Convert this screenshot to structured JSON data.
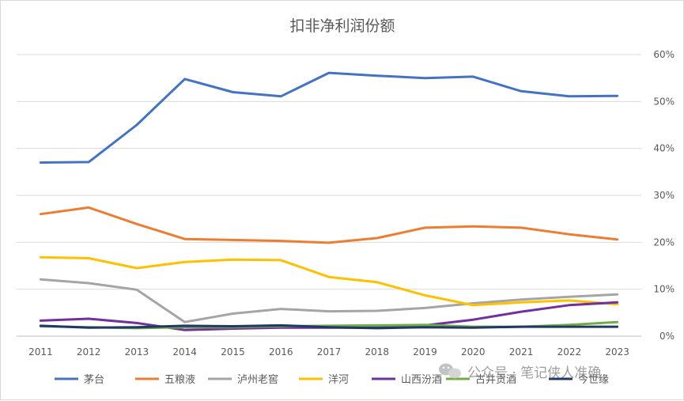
{
  "chart_data": {
    "type": "line",
    "title": "扣非净利润份额",
    "xlabel": "",
    "ylabel": "",
    "categories": [
      "2011",
      "2012",
      "2013",
      "2014",
      "2015",
      "2016",
      "2017",
      "2018",
      "2019",
      "2020",
      "2021",
      "2022",
      "2023"
    ],
    "ylim": [
      0,
      0.6
    ],
    "y_axis_position": "right",
    "y_ticks": [
      "0%",
      "10%",
      "20%",
      "30%",
      "40%",
      "50%",
      "60%"
    ],
    "grid": true,
    "legend_position": "bottom",
    "series": [
      {
        "name": "茅台",
        "color": "#4472C4",
        "values": [
          0.37,
          0.371,
          0.45,
          0.548,
          0.52,
          0.511,
          0.561,
          0.555,
          0.55,
          0.553,
          0.522,
          0.511,
          0.512
        ]
      },
      {
        "name": "五粮液",
        "color": "#ED7D31",
        "values": [
          0.26,
          0.274,
          0.239,
          0.207,
          0.205,
          0.203,
          0.199,
          0.209,
          0.231,
          0.234,
          0.231,
          0.217,
          0.206
        ]
      },
      {
        "name": "泸州老窖",
        "color": "#A5A5A5",
        "values": [
          0.121,
          0.113,
          0.099,
          0.03,
          0.048,
          0.058,
          0.053,
          0.054,
          0.06,
          0.07,
          0.078,
          0.084,
          0.089
        ]
      },
      {
        "name": "洋河",
        "color": "#FFC000",
        "values": [
          0.168,
          0.166,
          0.145,
          0.158,
          0.163,
          0.162,
          0.126,
          0.115,
          0.087,
          0.066,
          0.072,
          0.076,
          0.068
        ]
      },
      {
        "name": "山西汾酒",
        "color": "#7030A0",
        "values": [
          0.033,
          0.037,
          0.028,
          0.013,
          0.016,
          0.018,
          0.018,
          0.018,
          0.023,
          0.035,
          0.052,
          0.066,
          0.072
        ]
      },
      {
        "name": "古井贡酒",
        "color": "#70AD47",
        "values": [
          0.021,
          0.019,
          0.017,
          0.019,
          0.019,
          0.021,
          0.022,
          0.023,
          0.024,
          0.02,
          0.02,
          0.024,
          0.03
        ]
      },
      {
        "name": "今世缘",
        "color": "#203864",
        "values": [
          0.022,
          0.018,
          0.019,
          0.022,
          0.021,
          0.023,
          0.019,
          0.017,
          0.019,
          0.018,
          0.02,
          0.02,
          0.02
        ]
      }
    ]
  },
  "watermark": {
    "icon": "wechat-icon",
    "text": "公众号 · 笔记侠人准确"
  }
}
